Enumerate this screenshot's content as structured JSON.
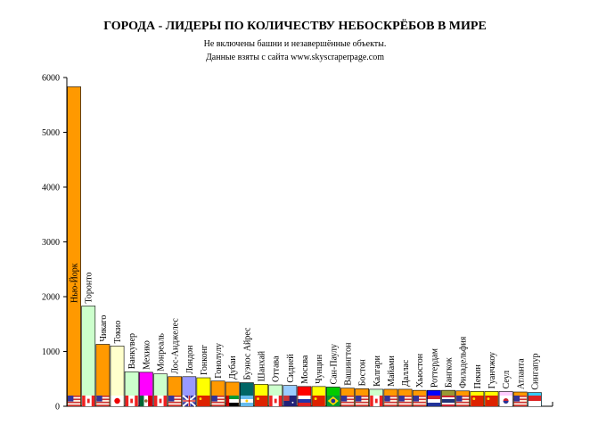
{
  "chart_data": {
    "type": "bar",
    "title": "ГОРОДА - ЛИДЕРЫ ПО КОЛИЧЕСТВУ НЕБОСКРЁБОВ В МИРЕ",
    "subtitle": [
      "Не включены башни и незавершённые объекты.",
      "Данные взяты с сайта www.skyscraperpage.com"
    ],
    "xlabel": "",
    "ylabel": "",
    "ylim": [
      0,
      6000
    ],
    "yticks": [
      "0",
      "1000",
      "2000",
      "3000",
      "4000",
      "5000",
      "6000"
    ],
    "grid": false,
    "categories": [
      "Нью-Йорк",
      "Торонто",
      "Чикаго",
      "Токио",
      "Ванкувер",
      "Мехико",
      "Монреаль",
      "Лос-Анджелес",
      "Лондон",
      "Гонконг",
      "Гонолулу",
      "Дубаи",
      "Буэнос Айрес",
      "Шанхай",
      "Оттава",
      "Сидней",
      "Москва",
      "Чунцин",
      "Сан-Паулу",
      "Вашингтон",
      "Бостон",
      "Калгари",
      "Майами",
      "Даллас",
      "Хьюстон",
      "Роттердам",
      "Бангкок",
      "Филадельфия",
      "Пекин",
      "Гуанчжоу",
      "Сеул",
      "Атланта",
      "Сингапур"
    ],
    "values": [
      5830,
      1830,
      1130,
      1100,
      630,
      620,
      590,
      540,
      540,
      520,
      460,
      440,
      430,
      400,
      390,
      380,
      360,
      360,
      350,
      330,
      320,
      310,
      310,
      310,
      290,
      290,
      290,
      280,
      270,
      270,
      270,
      260,
      250
    ],
    "colors": [
      "#ff9900",
      "#ccffcc",
      "#ff9900",
      "#ffffcc",
      "#ccffcc",
      "#ff00ff",
      "#ccffcc",
      "#ff9900",
      "#9999ff",
      "#ffff00",
      "#ff9900",
      "#ff9900",
      "#006666",
      "#ffff00",
      "#ccffcc",
      "#99ccff",
      "#ff0000",
      "#ffff00",
      "#00cc00",
      "#ff9900",
      "#ff9900",
      "#ccffcc",
      "#ff9900",
      "#ff9900",
      "#ff9900",
      "#0000ff",
      "#999933",
      "#ff9900",
      "#ffff00",
      "#ffff00",
      "#ffccff",
      "#ff9900",
      "#33ccff"
    ],
    "flags": [
      "usa",
      "canada",
      "usa",
      "japan",
      "canada",
      "mexico",
      "canada",
      "usa",
      "uk",
      "china",
      "usa",
      "uae",
      "argentina",
      "china",
      "canada",
      "australia",
      "russia",
      "china",
      "brazil",
      "usa",
      "usa",
      "canada",
      "usa",
      "usa",
      "usa",
      "netherlands",
      "thailand",
      "usa",
      "china",
      "china",
      "korea",
      "usa",
      "singapore"
    ]
  }
}
